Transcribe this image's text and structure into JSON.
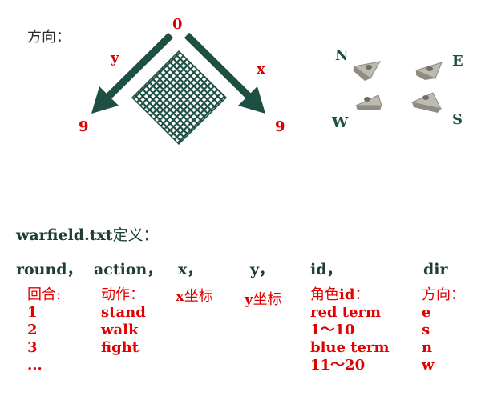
{
  "direction_label": "方向：",
  "diagram": {
    "origin": "0",
    "y_axis": "y",
    "x_axis": "x",
    "y_end": "9",
    "x_end": "9"
  },
  "compass": {
    "n": "N",
    "e": "E",
    "w": "W",
    "s": "S"
  },
  "definition": {
    "file": "warfield.txt",
    "suffix": "定义："
  },
  "columns": [
    {
      "key": "round",
      "header": "round，",
      "desc": "回合:",
      "values": [
        "1",
        "2",
        "3",
        "..."
      ]
    },
    {
      "key": "action",
      "header": "action，",
      "desc": "动作：",
      "values": [
        "stand",
        "walk",
        "fight"
      ]
    },
    {
      "key": "x",
      "header": "x，",
      "desc_bold": "x",
      "desc": "坐标",
      "values": []
    },
    {
      "key": "y",
      "header": "y，",
      "desc_bold": "y",
      "desc": "坐标",
      "values": []
    },
    {
      "key": "id",
      "header": "id，",
      "desc": "角色",
      "desc_bold": "id",
      "desc_tail": "：",
      "values": [
        "red term",
        "1～10",
        "blue term",
        "11～20"
      ]
    },
    {
      "key": "dir",
      "header": "dir",
      "desc": "方向：",
      "values": [
        "e",
        "s",
        "n",
        "w"
      ]
    }
  ],
  "colors": {
    "diagram": "#1d4f43",
    "accent_red": "#e00000",
    "piece": "#b9b6aa"
  }
}
